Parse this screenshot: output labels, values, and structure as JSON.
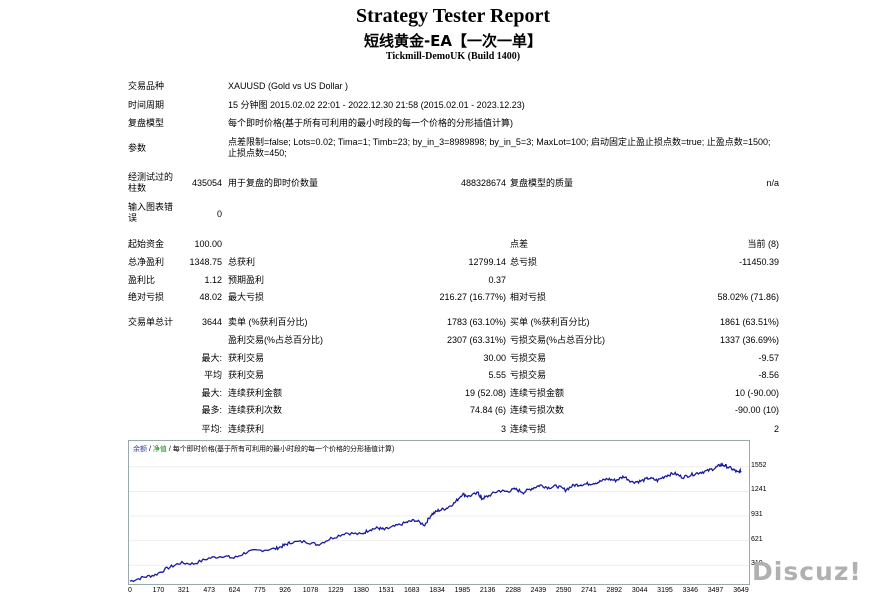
{
  "header": {
    "title": "Strategy Tester Report",
    "ea_name": "短线黄金-EA【一次一单】",
    "build": "Tickmill-DemoUK (Build 1400)"
  },
  "settings": {
    "symbol_label": "交易品种",
    "symbol_value": "XAUUSD (Gold vs US Dollar )",
    "period_label": "时间周期",
    "period_value": "15 分钟图 2015.02.02 22:01 - 2022.12.30 21:58 (2015.02.01 - 2023.12.23)",
    "model_label": "复盘模型",
    "model_value": "每个即时价格(基于所有可利用的最小时段的每一个价格的分形插值计算)",
    "params_label": "参数",
    "params_value": "点差限制=false; Lots=0.02; Tima=1; Timb=23; by_in_3=8989898; by_in_5=3; MaxLot=100; 启动固定止盈止损点数=true; 止盈点数=1500; 止损点数=450;"
  },
  "bars": {
    "bars_label": "经测试过的柱数",
    "bars_value": "435054",
    "ticks_label": "用于复盘的即时价数量",
    "ticks_value": "488328674",
    "quality_label": "复盘模型的质量",
    "quality_value": "n/a",
    "errors_label": "输入图表错误",
    "errors_value": "0"
  },
  "results": {
    "deposit_label": "起始资金",
    "deposit_value": "100.00",
    "spread_label": "点差",
    "spread_value": "当前 (8)",
    "net_label": "总净盈利",
    "net_value": "1348.75",
    "gross_profit_label": "总获利",
    "gross_profit_value": "12799.14",
    "gross_loss_label": "总亏损",
    "gross_loss_value": "-11450.39",
    "pf_label": "盈利比",
    "pf_value": "1.12",
    "expected_label": "预期盈利",
    "expected_value": "0.37",
    "abs_dd_label": "绝对亏损",
    "abs_dd_value": "48.02",
    "max_dd_label": "最大亏损",
    "max_dd_value": "216.27 (16.77%)",
    "rel_dd_label": "相对亏损",
    "rel_dd_value": "58.02% (71.86)",
    "total_label": "交易单总计",
    "total_value": "3644",
    "short_label": "卖单 (%获利百分比)",
    "short_value": "1783 (63.10%)",
    "long_label": "买单 (%获利百分比)",
    "long_value": "1861 (63.51%)",
    "profit_trades_label": "盈利交易(%占总百分比)",
    "profit_trades_value": "2307 (63.31%)",
    "loss_trades_label": "亏损交易(%占总百分比)",
    "loss_trades_value": "1337 (36.69%)",
    "largest_label": "最大:",
    "largest_profit_label": "获利交易",
    "largest_profit_value": "30.00",
    "largest_loss_label": "亏损交易",
    "largest_loss_value": "-9.57",
    "average_label": "平均",
    "average_profit_label": "获利交易",
    "average_profit_value": "5.55",
    "average_loss_label": "亏损交易",
    "average_loss_value": "-8.56",
    "max_label": "最大:",
    "max_cons_wins_label": "连续获利金额",
    "max_cons_wins_value": "19 (52.08)",
    "max_cons_losses_label": "连续亏损金额",
    "max_cons_losses_value": "10 (-90.00)",
    "maximal_label": "最多:",
    "maximal_wins_label": "连续获利次数",
    "maximal_wins_value": "74.84 (6)",
    "maximal_losses_label": "连续亏损次数",
    "maximal_losses_value": "-90.00 (10)",
    "avg_cons_label": "平均:",
    "avg_cons_wins_label": "连续获利",
    "avg_cons_wins_value": "3",
    "avg_cons_losses_label": "连续亏损",
    "avg_cons_losses_value": "2"
  },
  "chart_data": {
    "type": "line",
    "legend": {
      "balance": "余额",
      "equity": "净值",
      "model": "每个即时价格(基于所有可利用的最小时段的每一个价格的分形插值计算)",
      "sep": "/"
    },
    "colors": {
      "line": "#1a1aa0",
      "balance_text": "#3a3aa0",
      "equity_text": "#0a8a0a"
    },
    "x_ticks": [
      "0",
      "170",
      "321",
      "473",
      "624",
      "775",
      "926",
      "1078",
      "1229",
      "1380",
      "1531",
      "1683",
      "1834",
      "1985",
      "2136",
      "2288",
      "2439",
      "2590",
      "2741",
      "2892",
      "3044",
      "3195",
      "3346",
      "3497",
      "3649"
    ],
    "y_ticks": [
      "1552",
      "1241",
      "931",
      "621",
      "310"
    ],
    "x": [
      0,
      80,
      150,
      230,
      300,
      380,
      470,
      560,
      620,
      700,
      780,
      870,
      920,
      960,
      1050,
      1120,
      1200,
      1290,
      1380,
      1430,
      1480,
      1520,
      1580,
      1650,
      1700,
      1760,
      1800,
      1840,
      1890,
      1940,
      1985,
      2020,
      2080,
      2100,
      2136,
      2200,
      2250,
      2300,
      2350,
      2400,
      2450,
      2500,
      2550,
      2600,
      2650,
      2700,
      2750,
      2800,
      2850,
      2900,
      2950,
      3000,
      3050,
      3100,
      3150,
      3200,
      3250,
      3300,
      3350,
      3400,
      3450,
      3497,
      3530,
      3560,
      3600,
      3630,
      3649
    ],
    "y": [
      110,
      160,
      190,
      280,
      340,
      330,
      400,
      430,
      400,
      480,
      500,
      520,
      560,
      600,
      610,
      570,
      650,
      720,
      700,
      760,
      780,
      760,
      800,
      850,
      880,
      820,
      950,
      1000,
      1030,
      1100,
      1210,
      1180,
      1220,
      1150,
      1180,
      1250,
      1240,
      1270,
      1230,
      1280,
      1320,
      1290,
      1310,
      1260,
      1320,
      1330,
      1340,
      1360,
      1400,
      1380,
      1430,
      1360,
      1370,
      1410,
      1380,
      1440,
      1470,
      1420,
      1450,
      1480,
      1500,
      1540,
      1580,
      1560,
      1520,
      1480,
      1500
    ],
    "ylim": [
      100,
      1650
    ]
  },
  "watermark": "Discuz!"
}
